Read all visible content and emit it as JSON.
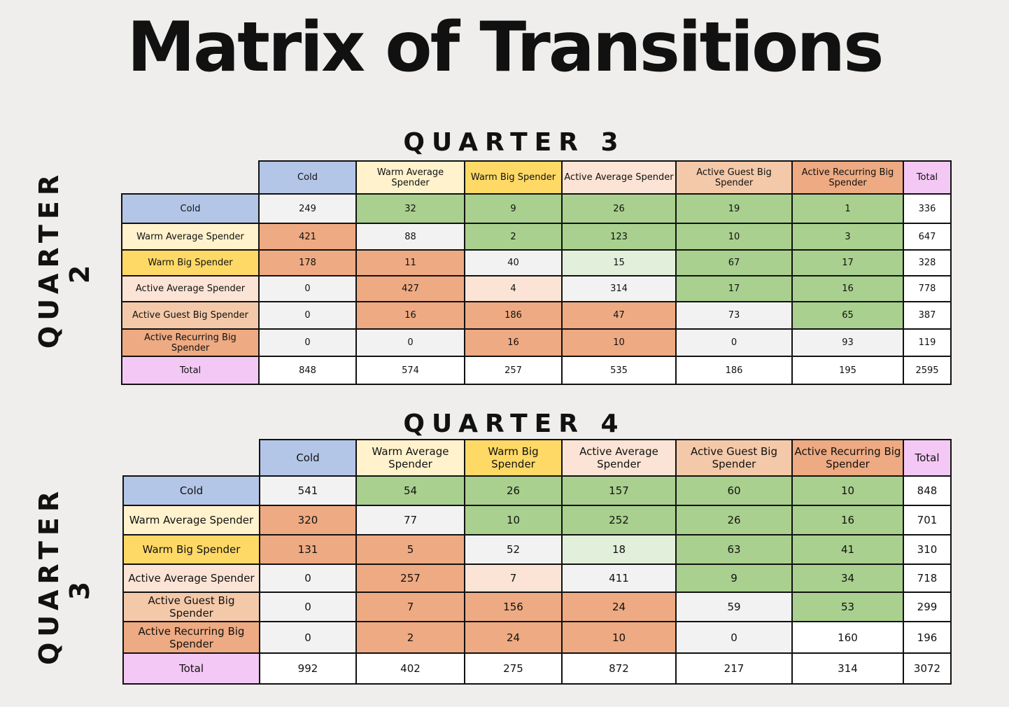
{
  "title": "Matrix of Transitions",
  "chart_data": [
    {
      "type": "table",
      "column_title": "QUARTER 3",
      "row_title": "QUARTER 2",
      "columns": [
        "Cold",
        "Warm Average Spender",
        "Warm Big Spender",
        "Active Average Spender",
        "Active Guest Big Spender",
        "Active Recurring Big Spender",
        "Total"
      ],
      "rows": [
        {
          "label": "Cold",
          "values": [
            249,
            32,
            9,
            26,
            19,
            1,
            336
          ]
        },
        {
          "label": "Warm Average Spender",
          "values": [
            421,
            88,
            2,
            123,
            10,
            3,
            647
          ]
        },
        {
          "label": "Warm Big Spender",
          "values": [
            178,
            11,
            40,
            15,
            67,
            17,
            328
          ]
        },
        {
          "label": "Active Average Spender",
          "values": [
            0,
            427,
            4,
            314,
            17,
            16,
            778
          ]
        },
        {
          "label": "Active Guest Big Spender",
          "values": [
            0,
            16,
            186,
            47,
            73,
            65,
            387
          ]
        },
        {
          "label": "Active Recurring Big Spender",
          "values": [
            0,
            0,
            16,
            10,
            0,
            93,
            119
          ]
        },
        {
          "label": "Total",
          "values": [
            848,
            574,
            257,
            535,
            186,
            195,
            2595
          ]
        }
      ]
    },
    {
      "type": "table",
      "column_title": "QUARTER 4",
      "row_title": "QUARTER 3",
      "columns": [
        "Cold",
        "Warm Average Spender",
        "Warm Big Spender",
        "Active Average Spender",
        "Active Guest Big Spender",
        "Active Recurring Big Spender",
        "Total"
      ],
      "rows": [
        {
          "label": "Cold",
          "values": [
            541,
            54,
            26,
            157,
            60,
            10,
            848
          ]
        },
        {
          "label": "Warm Average Spender",
          "values": [
            320,
            77,
            10,
            252,
            26,
            16,
            701
          ]
        },
        {
          "label": "Warm Big Spender",
          "values": [
            131,
            5,
            52,
            18,
            63,
            41,
            310
          ]
        },
        {
          "label": "Active Average Spender",
          "values": [
            0,
            257,
            7,
            411,
            9,
            34,
            718
          ]
        },
        {
          "label": "Active Guest Big Spender",
          "values": [
            0,
            7,
            156,
            24,
            59,
            53,
            299
          ]
        },
        {
          "label": "Active Recurring Big Spender",
          "values": [
            0,
            2,
            24,
            10,
            0,
            160,
            196
          ]
        },
        {
          "label": "Total",
          "values": [
            992,
            402,
            275,
            872,
            217,
            314,
            3072
          ]
        }
      ]
    }
  ],
  "colors": {
    "segments": [
      "#b4c6e7",
      "#fff2cc",
      "#ffd966",
      "#fbe4d5",
      "#f4c9a9",
      "#eeaa82",
      "#f4c8f4"
    ],
    "decrease": "#a9d08e",
    "decrease_light": "#e2efda",
    "increase": "#eeaa82",
    "increase_light": "#fbe4d5",
    "same": "#f2f2f2",
    "total_value": "#ffffff"
  }
}
